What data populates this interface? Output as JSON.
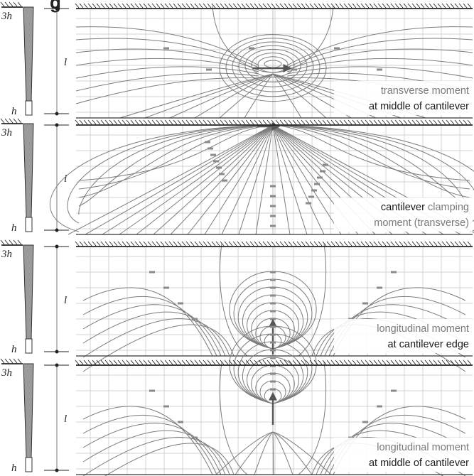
{
  "figure_label": "g",
  "symbols": {
    "root_depth": "3h",
    "tip_depth": "h",
    "span": "l"
  },
  "colors": {
    "contour": "#7c7c7c",
    "grid": "#c4c4c4",
    "ink": "#222222",
    "section_fill": "#9a9a9a"
  },
  "panels": [
    {
      "id": "transverse-middle",
      "pattern": "saddle",
      "caption": [
        [
          {
            "text": "transverse moment",
            "tone": "grey"
          }
        ],
        [
          {
            "text": "at middle of cantilever",
            "tone": "dark"
          }
        ]
      ]
    },
    {
      "id": "clamping-transverse",
      "pattern": "fan",
      "caption": [
        [
          {
            "text": "cantilever ",
            "tone": "dark"
          },
          {
            "text": "clamping",
            "tone": "grey"
          }
        ],
        [
          {
            "text": "moment (transverse)",
            "tone": "grey"
          }
        ]
      ]
    },
    {
      "id": "longitudinal-edge",
      "pattern": "bulb-edge",
      "caption": [
        [
          {
            "text": "longitudinal moment",
            "tone": "grey"
          }
        ],
        [
          {
            "text": "at cantilever edge",
            "tone": "dark"
          }
        ]
      ]
    },
    {
      "id": "longitudinal-middle",
      "pattern": "bulb-middle",
      "caption": [
        [
          {
            "text": "longitudinal moment",
            "tone": "grey"
          }
        ],
        [
          {
            "text": "at middle of cantilever",
            "tone": "dark"
          }
        ]
      ]
    }
  ]
}
